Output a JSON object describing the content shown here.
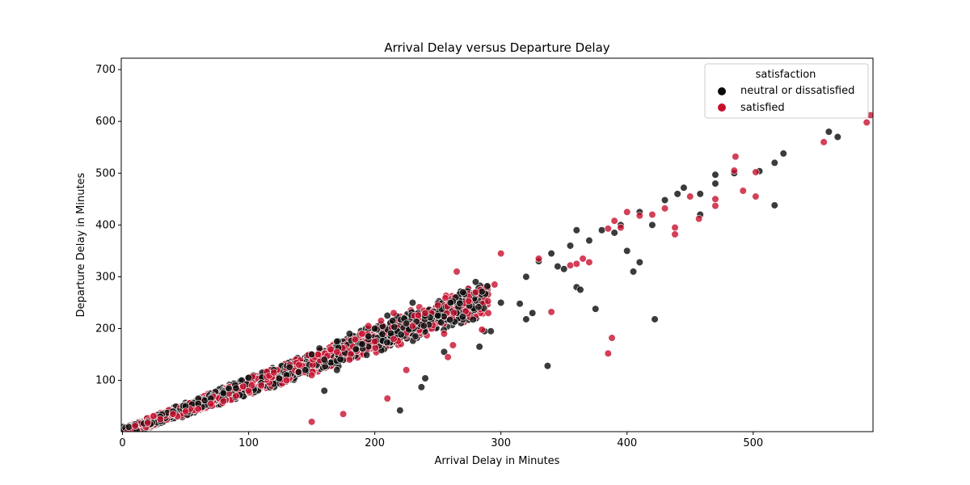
{
  "chart_data": {
    "type": "scatter",
    "title": "Arrival Delay versus Departure Delay",
    "xlabel": "Arrival Delay in Minutes",
    "ylabel": "Departure Delay in Minutes",
    "xlim": [
      -1,
      595
    ],
    "ylim": [
      1,
      722
    ],
    "xticks": [
      0,
      100,
      200,
      300,
      400,
      500
    ],
    "yticks": [
      100,
      200,
      300,
      400,
      500,
      600,
      700
    ],
    "grid": false,
    "legend": {
      "title": "satisfaction",
      "placement": "top-right"
    },
    "series": [
      {
        "name": "neutral or dissatisfied",
        "color": "#0a0a0a",
        "points": [
          [
            517,
            520
          ],
          [
            524,
            538
          ],
          [
            505,
            504
          ],
          [
            517,
            438
          ],
          [
            560,
            580
          ],
          [
            567,
            570
          ],
          [
            485,
            500
          ],
          [
            470,
            497
          ],
          [
            470,
            480
          ],
          [
            458,
            460
          ],
          [
            445,
            472
          ],
          [
            440,
            460
          ],
          [
            430,
            448
          ],
          [
            458,
            420
          ],
          [
            420,
            400
          ],
          [
            410,
            425
          ],
          [
            405,
            310
          ],
          [
            410,
            328
          ],
          [
            422,
            218
          ],
          [
            375,
            238
          ],
          [
            337,
            128
          ],
          [
            400,
            350
          ],
          [
            395,
            400
          ],
          [
            380,
            390
          ],
          [
            390,
            385
          ],
          [
            370,
            370
          ],
          [
            360,
            280
          ],
          [
            363,
            275
          ],
          [
            350,
            315
          ],
          [
            345,
            320
          ],
          [
            355,
            360
          ],
          [
            360,
            390
          ],
          [
            320,
            300
          ],
          [
            325,
            230
          ],
          [
            315,
            248
          ],
          [
            320,
            218
          ],
          [
            287,
            195
          ],
          [
            292,
            195
          ],
          [
            283,
            165
          ],
          [
            250,
            225
          ],
          [
            255,
            155
          ],
          [
            240,
            104
          ],
          [
            237,
            87
          ],
          [
            220,
            42
          ],
          [
            300,
            250
          ],
          [
            330,
            330
          ],
          [
            340,
            345
          ],
          [
            280,
            290
          ],
          [
            270,
            270
          ],
          [
            260,
            250
          ],
          [
            230,
            250
          ],
          [
            225,
            210
          ],
          [
            210,
            225
          ],
          [
            200,
            200
          ],
          [
            195,
            185
          ],
          [
            185,
            160
          ],
          [
            180,
            190
          ],
          [
            170,
            175
          ],
          [
            160,
            140
          ],
          [
            150,
            150
          ],
          [
            145,
            120
          ],
          [
            130,
            110
          ],
          [
            120,
            120
          ],
          [
            110,
            95
          ],
          [
            100,
            105
          ],
          [
            90,
            85
          ],
          [
            80,
            75
          ],
          [
            70,
            65
          ],
          [
            60,
            55
          ],
          [
            50,
            50
          ],
          [
            40,
            40
          ],
          [
            30,
            30
          ],
          [
            20,
            20
          ],
          [
            10,
            15
          ],
          [
            5,
            10
          ],
          [
            160,
            80
          ],
          [
            170,
            120
          ],
          [
            190,
            170
          ]
        ]
      },
      {
        "name": "satisfied",
        "color": "#c8102e",
        "points": [
          [
            593,
            612
          ],
          [
            590,
            598
          ],
          [
            556,
            560
          ],
          [
            502,
            502
          ],
          [
            502,
            455
          ],
          [
            492,
            466
          ],
          [
            486,
            532
          ],
          [
            485,
            505
          ],
          [
            470,
            450
          ],
          [
            470,
            437
          ],
          [
            450,
            455
          ],
          [
            457,
            412
          ],
          [
            438,
            395
          ],
          [
            438,
            382
          ],
          [
            430,
            432
          ],
          [
            420,
            420
          ],
          [
            410,
            418
          ],
          [
            400,
            425
          ],
          [
            395,
            395
          ],
          [
            390,
            408
          ],
          [
            385,
            393
          ],
          [
            388,
            182
          ],
          [
            385,
            152
          ],
          [
            365,
            335
          ],
          [
            370,
            328
          ],
          [
            355,
            322
          ],
          [
            360,
            325
          ],
          [
            330,
            335
          ],
          [
            340,
            232
          ],
          [
            300,
            345
          ],
          [
            290,
            230
          ],
          [
            285,
            198
          ],
          [
            295,
            285
          ],
          [
            280,
            270
          ],
          [
            265,
            310
          ],
          [
            262,
            168
          ],
          [
            255,
            190
          ],
          [
            258,
            145
          ],
          [
            250,
            245
          ],
          [
            240,
            230
          ],
          [
            230,
            205
          ],
          [
            225,
            120
          ],
          [
            210,
            65
          ],
          [
            215,
            180
          ],
          [
            205,
            215
          ],
          [
            200,
            175
          ],
          [
            190,
            190
          ],
          [
            180,
            140
          ],
          [
            175,
            35
          ],
          [
            165,
            160
          ],
          [
            155,
            150
          ],
          [
            150,
            20
          ],
          [
            140,
            130
          ],
          [
            130,
            100
          ],
          [
            120,
            115
          ],
          [
            110,
            90
          ],
          [
            100,
            80
          ],
          [
            90,
            70
          ],
          [
            80,
            60
          ],
          [
            70,
            55
          ],
          [
            60,
            45
          ],
          [
            50,
            40
          ],
          [
            40,
            35
          ],
          [
            30,
            25
          ],
          [
            20,
            18
          ],
          [
            10,
            12
          ],
          [
            150,
            110
          ],
          [
            170,
            155
          ],
          [
            195,
            205
          ],
          [
            215,
            230
          ]
        ]
      }
    ]
  }
}
